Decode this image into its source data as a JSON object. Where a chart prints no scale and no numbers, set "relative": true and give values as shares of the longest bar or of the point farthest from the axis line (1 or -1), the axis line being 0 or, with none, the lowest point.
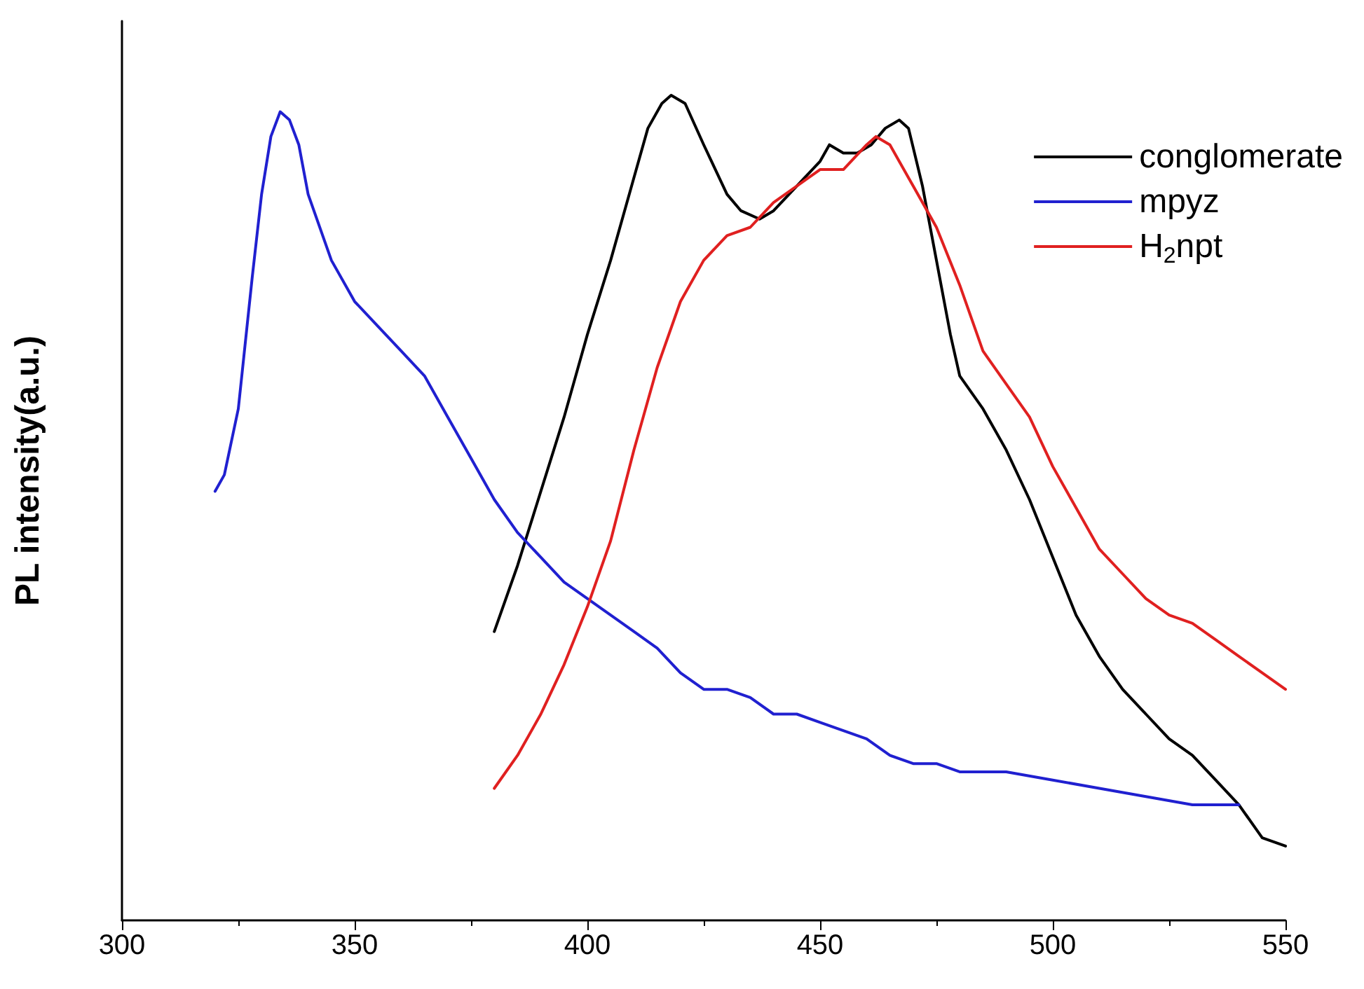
{
  "chart_data": {
    "type": "line",
    "ylabel": "PL intensity(a.u.)",
    "relative": true,
    "xlim": [
      300,
      550
    ],
    "xticks": [
      300,
      350,
      400,
      450,
      500,
      550
    ],
    "legend": "top right",
    "grid": false,
    "marker": "none",
    "line_style": "solid",
    "series": [
      {
        "name": "conglomerate",
        "color": "#000000",
        "x": [
          380,
          385,
          390,
          395,
          400,
          405,
          410,
          413,
          416,
          418,
          421,
          425,
          430,
          433,
          437,
          440,
          445,
          450,
          452,
          455,
          458,
          461,
          464,
          467,
          469,
          472,
          475,
          478,
          480,
          485,
          490,
          495,
          500,
          505,
          510,
          515,
          520,
          525,
          530,
          535,
          540,
          545,
          550
        ],
        "values": [
          0.35,
          0.43,
          0.52,
          0.61,
          0.71,
          0.8,
          0.9,
          0.96,
          0.99,
          1.0,
          0.99,
          0.94,
          0.88,
          0.86,
          0.85,
          0.86,
          0.89,
          0.92,
          0.94,
          0.93,
          0.93,
          0.94,
          0.96,
          0.97,
          0.96,
          0.89,
          0.8,
          0.71,
          0.66,
          0.62,
          0.57,
          0.51,
          0.44,
          0.37,
          0.32,
          0.28,
          0.25,
          0.22,
          0.2,
          0.17,
          0.14,
          0.1,
          0.09
        ]
      },
      {
        "name": "mpyz",
        "color": "#2020d0",
        "x": [
          320,
          322,
          325,
          328,
          330,
          332,
          334,
          336,
          338,
          340,
          345,
          350,
          355,
          360,
          365,
          370,
          375,
          380,
          385,
          390,
          395,
          400,
          405,
          410,
          415,
          420,
          425,
          430,
          435,
          440,
          445,
          450,
          455,
          460,
          465,
          470,
          475,
          480,
          490,
          500,
          510,
          520,
          530,
          540
        ],
        "values": [
          0.52,
          0.54,
          0.62,
          0.78,
          0.88,
          0.95,
          0.98,
          0.97,
          0.94,
          0.88,
          0.8,
          0.75,
          0.72,
          0.69,
          0.66,
          0.61,
          0.56,
          0.51,
          0.47,
          0.44,
          0.41,
          0.39,
          0.37,
          0.35,
          0.33,
          0.3,
          0.28,
          0.28,
          0.27,
          0.25,
          0.25,
          0.24,
          0.23,
          0.22,
          0.2,
          0.19,
          0.19,
          0.18,
          0.18,
          0.17,
          0.16,
          0.15,
          0.14,
          0.14
        ]
      },
      {
        "name": "H$_{2}$npt",
        "color": "#e02020",
        "x": [
          380,
          385,
          390,
          395,
          400,
          405,
          410,
          415,
          420,
          425,
          430,
          435,
          440,
          445,
          450,
          455,
          460,
          462,
          465,
          470,
          475,
          480,
          485,
          490,
          495,
          500,
          505,
          510,
          515,
          520,
          525,
          530,
          535,
          540,
          545,
          550
        ],
        "values": [
          0.16,
          0.2,
          0.25,
          0.31,
          0.38,
          0.46,
          0.57,
          0.67,
          0.75,
          0.8,
          0.83,
          0.84,
          0.87,
          0.89,
          0.91,
          0.91,
          0.94,
          0.95,
          0.94,
          0.89,
          0.84,
          0.77,
          0.69,
          0.65,
          0.61,
          0.55,
          0.5,
          0.45,
          0.42,
          0.39,
          0.37,
          0.36,
          0.34,
          0.32,
          0.3,
          0.28
        ]
      }
    ]
  }
}
